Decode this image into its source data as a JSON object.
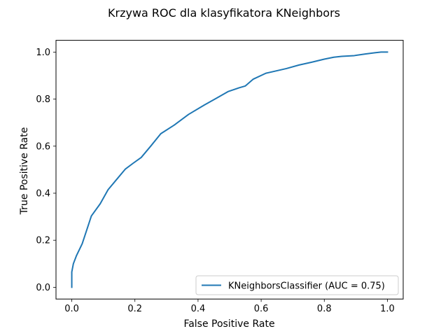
{
  "chart_data": {
    "type": "line",
    "title": "Krzywa ROC dla klasyfikatora KNeighbors",
    "xlabel": "False Positive Rate",
    "ylabel": "True Positive Rate",
    "xlim": [
      -0.05,
      1.05
    ],
    "ylim": [
      -0.05,
      1.05
    ],
    "xticks": [
      "0.0",
      "0.2",
      "0.4",
      "0.6",
      "0.8",
      "1.0"
    ],
    "yticks": [
      "0.0",
      "0.2",
      "0.4",
      "0.6",
      "0.8",
      "1.0"
    ],
    "grid": false,
    "legend_position": "lower right",
    "series": [
      {
        "name": "KNeighborsClassifier (AUC = 0.75)",
        "color": "#1f77b4",
        "x": [
          0.0,
          0.0,
          0.005,
          0.015,
          0.033,
          0.062,
          0.09,
          0.115,
          0.145,
          0.17,
          0.195,
          0.22,
          0.25,
          0.282,
          0.325,
          0.37,
          0.42,
          0.46,
          0.495,
          0.53,
          0.55,
          0.575,
          0.615,
          0.68,
          0.72,
          0.76,
          0.8,
          0.83,
          0.855,
          0.895,
          0.93,
          0.96,
          0.98,
          1.0
        ],
        "y": [
          0.0,
          0.065,
          0.1,
          0.135,
          0.185,
          0.303,
          0.355,
          0.415,
          0.463,
          0.503,
          0.528,
          0.552,
          0.6,
          0.653,
          0.69,
          0.735,
          0.775,
          0.805,
          0.832,
          0.848,
          0.856,
          0.885,
          0.91,
          0.93,
          0.945,
          0.957,
          0.97,
          0.978,
          0.982,
          0.985,
          0.992,
          0.997,
          1.0,
          1.0
        ]
      }
    ]
  }
}
